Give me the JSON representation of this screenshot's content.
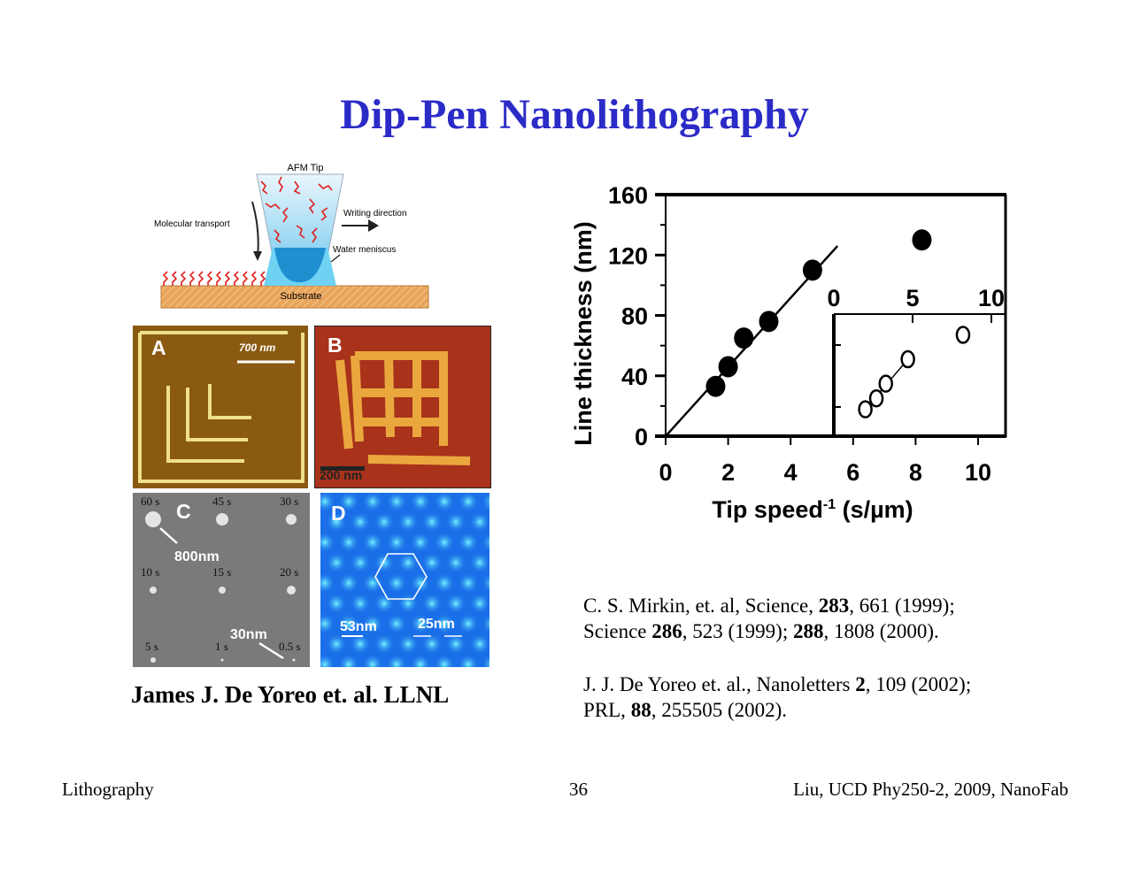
{
  "title": "Dip-Pen Nanolithography",
  "diagram": {
    "tip_label": "AFM Tip",
    "transport_label": "Molecular transport",
    "direction_label": "Writing direction",
    "meniscus_label": "Water meniscus",
    "substrate_label": "Substrate"
  },
  "panels": {
    "a": {
      "letter": "A",
      "scale": "700 nm"
    },
    "b": {
      "letter": "B",
      "scale": "200 nm"
    },
    "c": {
      "letter": "C",
      "times": [
        "60 s",
        "45 s",
        "30 s",
        "10 s",
        "15 s",
        "20 s",
        "5 s",
        "1 s",
        "0.5 s"
      ],
      "size_large": "800nm",
      "size_small": "30nm"
    },
    "d": {
      "letter": "D",
      "spacing": "53nm",
      "width": "25nm"
    }
  },
  "credit": "James J. De Yoreo et. al. LLNL",
  "references": {
    "r1_line1_a": "C. S. Mirkin, et. al, Science, ",
    "r1_line1_b": "283",
    "r1_line1_c": ", 661 (1999);",
    "r1_line2_a": "Science ",
    "r1_line2_b": "286",
    "r1_line2_c": ", 523 (1999); ",
    "r1_line2_d": "288",
    "r1_line2_e": ", 1808 (2000).",
    "r2_line1_a": "J. J. De Yoreo et. al., Nanoletters ",
    "r2_line1_b": "2",
    "r2_line1_c": ", 109 (2002);",
    "r2_line2_a": "PRL, ",
    "r2_line2_b": "88",
    "r2_line2_c": ", 255505 (2002)."
  },
  "footer": {
    "left": "Lithography",
    "page": "36",
    "right": "Liu, UCD Phy250-2, 2009,  NanoFab"
  },
  "chart_data": [
    {
      "type": "scatter",
      "title": "",
      "xlabel": "Tip speed-1 (s/µm)",
      "xlabel_main": "Tip speed",
      "xlabel_sup": "-1",
      "xlabel_unit": " (s/µm)",
      "ylabel": "Line thickness (nm)",
      "xlim": [
        0,
        11
      ],
      "ylim": [
        0,
        160
      ],
      "xticks": [
        "0",
        "2",
        "4",
        "6",
        "8",
        "10"
      ],
      "yticks": [
        "0",
        "40",
        "80",
        "120",
        "160"
      ],
      "series": [
        {
          "name": "filled",
          "marker": "filled-circle",
          "x": [
            1.6,
            2.0,
            2.5,
            3.3,
            4.7,
            8.2
          ],
          "y": [
            33,
            46,
            65,
            76,
            110,
            130
          ]
        },
        {
          "name": "fit",
          "marker": "line",
          "x": [
            0,
            5.5
          ],
          "y": [
            0,
            126
          ]
        }
      ]
    },
    {
      "type": "scatter",
      "title": "inset",
      "xlim": [
        0,
        11
      ],
      "ylim": [
        0,
        1
      ],
      "xticks": [
        "0",
        "5",
        "10"
      ],
      "series": [
        {
          "name": "open",
          "marker": "open-circle",
          "x": [
            2.0,
            2.7,
            3.3,
            4.7,
            8.2
          ],
          "y": [
            0.22,
            0.31,
            0.43,
            0.63,
            0.83
          ]
        },
        {
          "name": "fit",
          "marker": "line",
          "x": [
            2.0,
            4.7
          ],
          "y": [
            0.22,
            0.63
          ]
        }
      ]
    }
  ]
}
